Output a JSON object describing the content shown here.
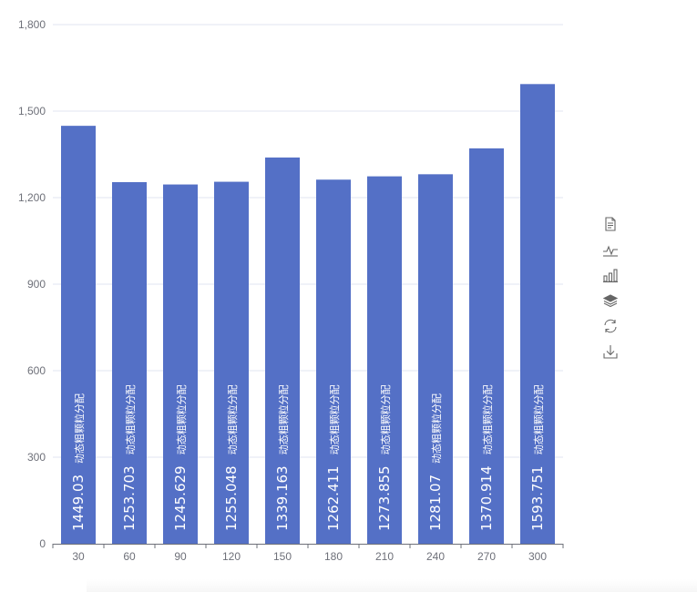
{
  "chart_data": {
    "type": "bar",
    "categories": [
      "30",
      "60",
      "90",
      "120",
      "150",
      "180",
      "210",
      "240",
      "270",
      "300"
    ],
    "series": [
      {
        "values": [
          1449.03,
          1253.703,
          1245.629,
          1255.048,
          1339.163,
          1262.411,
          1273.855,
          1281.07,
          1370.914,
          1593.751
        ],
        "label_text": "动态粗颗粒分配"
      }
    ],
    "ylim": [
      0,
      1800
    ],
    "yticks": [
      0,
      300,
      600,
      900,
      1200,
      1500,
      1800
    ],
    "ytick_labels": [
      "0",
      "300",
      "600",
      "900",
      "1,200",
      "1,500",
      "1,800"
    ],
    "grid": true,
    "bar_color": "#5470c6"
  },
  "toolbox": {
    "items": [
      "data-view-icon",
      "line-chart-icon",
      "bar-chart-icon",
      "stack-icon",
      "restore-icon",
      "download-icon"
    ],
    "color": "#666666"
  }
}
